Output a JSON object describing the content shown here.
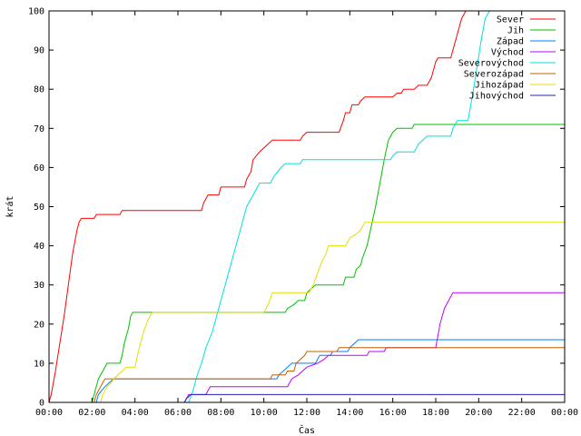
{
  "chart_data": {
    "type": "line",
    "xlabel": "Čas",
    "ylabel": "krát",
    "xlim": [
      0,
      24
    ],
    "ylim": [
      0,
      100
    ],
    "x_ticks": [
      {
        "v": 0,
        "label": "00:00"
      },
      {
        "v": 2,
        "label": "02:00"
      },
      {
        "v": 4,
        "label": "04:00"
      },
      {
        "v": 6,
        "label": "06:00"
      },
      {
        "v": 8,
        "label": "08:00"
      },
      {
        "v": 10,
        "label": "10:00"
      },
      {
        "v": 12,
        "label": "12:00"
      },
      {
        "v": 14,
        "label": "14:00"
      },
      {
        "v": 16,
        "label": "16:00"
      },
      {
        "v": 18,
        "label": "18:00"
      },
      {
        "v": 20,
        "label": "20:00"
      },
      {
        "v": 22,
        "label": "22:00"
      },
      {
        "v": 24,
        "label": "00:00"
      }
    ],
    "y_ticks": [
      0,
      10,
      20,
      30,
      40,
      50,
      60,
      70,
      80,
      90,
      100
    ],
    "grid": false,
    "legend_position": "top-right",
    "series": [
      {
        "name": "Sever",
        "color": "#ff0000",
        "points": [
          [
            0,
            0
          ],
          [
            0.1,
            2
          ],
          [
            0.3,
            8
          ],
          [
            0.5,
            15
          ],
          [
            0.7,
            22
          ],
          [
            0.9,
            30
          ],
          [
            1.1,
            38
          ],
          [
            1.3,
            44
          ],
          [
            1.4,
            46
          ],
          [
            1.5,
            47
          ],
          [
            2.1,
            47
          ],
          [
            2.2,
            48
          ],
          [
            2.4,
            48
          ],
          [
            3.3,
            48
          ],
          [
            3.4,
            49
          ],
          [
            7.1,
            49
          ],
          [
            7.2,
            51
          ],
          [
            7.4,
            53
          ],
          [
            7.9,
            53
          ],
          [
            8.0,
            55
          ],
          [
            9.1,
            55
          ],
          [
            9.2,
            57
          ],
          [
            9.4,
            59
          ],
          [
            9.5,
            62
          ],
          [
            9.8,
            64
          ],
          [
            10.2,
            66
          ],
          [
            10.4,
            67
          ],
          [
            11.7,
            67
          ],
          [
            11.8,
            68
          ],
          [
            12.0,
            69
          ],
          [
            13.5,
            69
          ],
          [
            13.7,
            72
          ],
          [
            13.8,
            74
          ],
          [
            14.0,
            74
          ],
          [
            14.1,
            76
          ],
          [
            14.4,
            76
          ],
          [
            14.5,
            77
          ],
          [
            14.7,
            78
          ],
          [
            16.0,
            78
          ],
          [
            16.2,
            79
          ],
          [
            16.4,
            79
          ],
          [
            16.5,
            80
          ],
          [
            17.0,
            80
          ],
          [
            17.2,
            81
          ],
          [
            17.6,
            81
          ],
          [
            17.8,
            83
          ],
          [
            17.9,
            85
          ],
          [
            18.0,
            87
          ],
          [
            18.1,
            88
          ],
          [
            18.7,
            88
          ],
          [
            18.8,
            90
          ],
          [
            19.0,
            94
          ],
          [
            19.2,
            98
          ],
          [
            19.4,
            100
          ]
        ]
      },
      {
        "name": "Jih",
        "color": "#00c000",
        "points": [
          [
            2.0,
            0
          ],
          [
            2.1,
            2
          ],
          [
            2.3,
            6
          ],
          [
            2.5,
            8
          ],
          [
            2.7,
            10
          ],
          [
            3.3,
            10
          ],
          [
            3.4,
            12
          ],
          [
            3.5,
            15
          ],
          [
            3.7,
            19
          ],
          [
            3.8,
            22
          ],
          [
            3.9,
            23
          ],
          [
            10.2,
            23
          ],
          [
            11.0,
            23
          ],
          [
            11.1,
            24
          ],
          [
            11.4,
            25
          ],
          [
            11.6,
            26
          ],
          [
            11.9,
            26
          ],
          [
            12.0,
            28
          ],
          [
            12.2,
            29
          ],
          [
            12.4,
            30
          ],
          [
            13.7,
            30
          ],
          [
            13.8,
            32
          ],
          [
            14.2,
            32
          ],
          [
            14.3,
            34
          ],
          [
            14.5,
            35
          ],
          [
            14.6,
            37
          ],
          [
            14.8,
            40
          ],
          [
            15.0,
            45
          ],
          [
            15.2,
            50
          ],
          [
            15.4,
            56
          ],
          [
            15.6,
            62
          ],
          [
            15.8,
            67
          ],
          [
            16.0,
            69
          ],
          [
            16.2,
            70
          ],
          [
            16.9,
            70
          ],
          [
            17.0,
            71
          ],
          [
            24,
            71
          ]
        ]
      },
      {
        "name": "Západ",
        "color": "#0080ff",
        "points": [
          [
            2.2,
            0
          ],
          [
            2.3,
            2
          ],
          [
            2.6,
            4
          ],
          [
            2.8,
            5
          ],
          [
            3.0,
            6
          ],
          [
            10.6,
            6
          ],
          [
            10.7,
            7
          ],
          [
            10.9,
            8
          ],
          [
            11.1,
            9
          ],
          [
            11.3,
            10
          ],
          [
            12.4,
            10
          ],
          [
            12.5,
            11
          ],
          [
            12.6,
            12
          ],
          [
            13.1,
            12
          ],
          [
            13.2,
            13
          ],
          [
            13.9,
            13
          ],
          [
            14.0,
            14
          ],
          [
            14.2,
            15
          ],
          [
            14.4,
            16
          ],
          [
            24,
            16
          ]
        ]
      },
      {
        "name": "Východ",
        "color": "#c000ff",
        "points": [
          [
            6.3,
            0
          ],
          [
            6.4,
            1
          ],
          [
            6.5,
            2
          ],
          [
            7.3,
            2
          ],
          [
            7.4,
            3
          ],
          [
            7.5,
            4
          ],
          [
            11.1,
            4
          ],
          [
            11.2,
            5
          ],
          [
            11.3,
            6
          ],
          [
            11.6,
            7
          ],
          [
            11.8,
            8
          ],
          [
            12.0,
            9
          ],
          [
            12.5,
            10
          ],
          [
            12.8,
            11
          ],
          [
            13.0,
            12
          ],
          [
            14.8,
            12
          ],
          [
            14.9,
            13
          ],
          [
            15.6,
            13
          ],
          [
            15.7,
            14
          ],
          [
            18.0,
            14
          ],
          [
            18.2,
            20
          ],
          [
            18.4,
            24
          ],
          [
            18.6,
            26
          ],
          [
            18.8,
            28
          ],
          [
            24,
            28
          ]
        ]
      },
      {
        "name": "Severovýchod",
        "color": "#00e0e0",
        "points": [
          [
            6.5,
            0
          ],
          [
            6.7,
            3
          ],
          [
            6.9,
            7
          ],
          [
            7.1,
            10
          ],
          [
            7.3,
            14
          ],
          [
            7.6,
            18
          ],
          [
            7.8,
            22
          ],
          [
            8.0,
            26
          ],
          [
            8.2,
            30
          ],
          [
            8.4,
            34
          ],
          [
            8.6,
            38
          ],
          [
            8.8,
            42
          ],
          [
            9.0,
            46
          ],
          [
            9.2,
            50
          ],
          [
            9.5,
            53
          ],
          [
            9.8,
            56
          ],
          [
            10.3,
            56
          ],
          [
            10.5,
            58
          ],
          [
            10.8,
            60
          ],
          [
            11.0,
            61
          ],
          [
            11.7,
            61
          ],
          [
            11.8,
            62
          ],
          [
            15.9,
            62
          ],
          [
            16.0,
            63
          ],
          [
            16.2,
            64
          ],
          [
            17.0,
            64
          ],
          [
            17.2,
            66
          ],
          [
            17.4,
            67
          ],
          [
            17.6,
            68
          ],
          [
            18.7,
            68
          ],
          [
            18.8,
            70
          ],
          [
            19.0,
            72
          ],
          [
            19.5,
            72
          ],
          [
            19.7,
            78
          ],
          [
            19.9,
            85
          ],
          [
            20.1,
            92
          ],
          [
            20.3,
            98
          ],
          [
            20.5,
            100
          ]
        ]
      },
      {
        "name": "Severozápad",
        "color": "#c06000",
        "points": [
          [
            2.1,
            0
          ],
          [
            2.2,
            2
          ],
          [
            2.4,
            4
          ],
          [
            2.6,
            6
          ],
          [
            3.0,
            6
          ],
          [
            10.3,
            6
          ],
          [
            10.4,
            7
          ],
          [
            11.0,
            7
          ],
          [
            11.1,
            8
          ],
          [
            11.4,
            8
          ],
          [
            11.5,
            10
          ],
          [
            11.7,
            11
          ],
          [
            11.9,
            12
          ],
          [
            12.0,
            13
          ],
          [
            13.4,
            13
          ],
          [
            13.5,
            14
          ],
          [
            24,
            14
          ]
        ]
      },
      {
        "name": "Jihozápad",
        "color": "#e0e000",
        "points": [
          [
            2.4,
            0
          ],
          [
            2.5,
            2
          ],
          [
            2.7,
            4
          ],
          [
            2.9,
            5
          ],
          [
            3.0,
            6
          ],
          [
            3.2,
            7
          ],
          [
            3.4,
            8
          ],
          [
            3.6,
            9
          ],
          [
            4.0,
            9
          ],
          [
            4.2,
            14
          ],
          [
            4.4,
            18
          ],
          [
            4.6,
            21
          ],
          [
            4.8,
            23
          ],
          [
            10.0,
            23
          ],
          [
            10.2,
            25
          ],
          [
            10.4,
            28
          ],
          [
            12.1,
            28
          ],
          [
            12.3,
            30
          ],
          [
            12.5,
            33
          ],
          [
            12.7,
            36
          ],
          [
            12.9,
            38
          ],
          [
            13.0,
            40
          ],
          [
            13.8,
            40
          ],
          [
            14.0,
            42
          ],
          [
            14.3,
            43
          ],
          [
            14.5,
            44
          ],
          [
            14.7,
            46
          ],
          [
            24,
            46
          ]
        ]
      },
      {
        "name": "Jihovýchod",
        "color": "#2020c0",
        "points": [
          [
            6.3,
            0
          ],
          [
            6.4,
            1
          ],
          [
            6.6,
            2
          ],
          [
            7.1,
            2
          ],
          [
            24,
            2
          ]
        ]
      }
    ]
  }
}
